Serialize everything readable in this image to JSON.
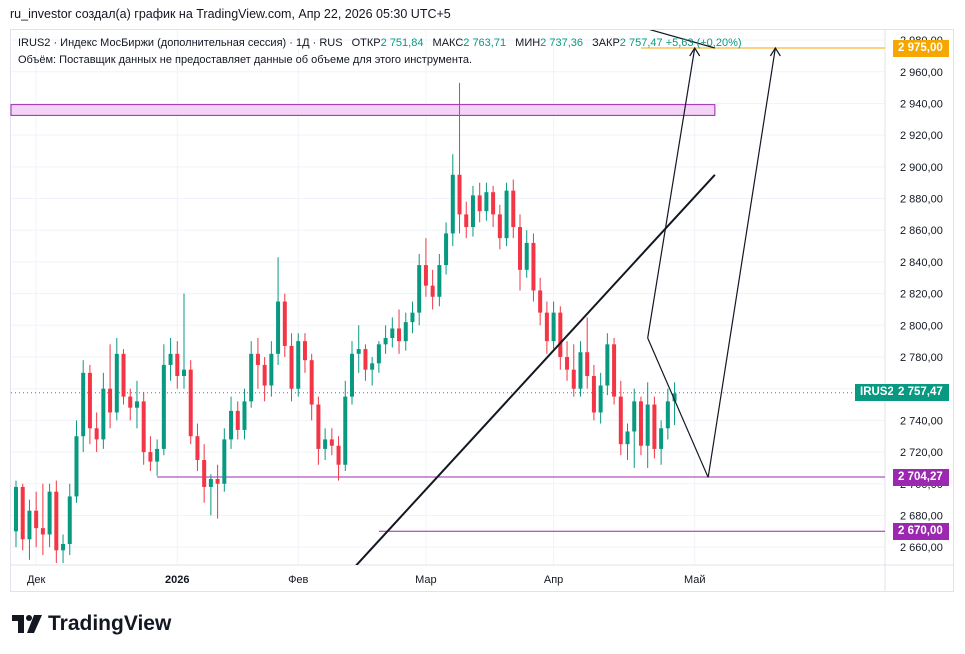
{
  "header": {
    "attribution": "ru_investor создал(а) график на TradingView.com, Апр 22, 2026 05:30 UTC+5"
  },
  "legend": {
    "symbol_line": "IRUS2 · Индекс МосБиржи (дополнительная сессия) · 1Д · RUS",
    "open_label": "ОТКР",
    "open_value": "2 751,84",
    "high_label": "МАКС",
    "high_value": "2 763,71",
    "low_label": "МИН",
    "low_value": "2 737,36",
    "close_label": "ЗАКР",
    "close_value": "2 757,47",
    "change": "+5,63 (+0,20%)",
    "volume_note": "Объём: Поставщик данных не предоставляет данные об объеме для этого инструмента."
  },
  "brand": {
    "name": "TradingView"
  },
  "colors": {
    "up": "#089981",
    "down": "#f23645",
    "purple": "#9c27b0",
    "gold": "#f7a600",
    "zone_fill": "#f3d4f7",
    "grid": "#f0f3fa",
    "axis_text": "#131722"
  },
  "chart_data": {
    "type": "candlestick",
    "title": "IRUS2 · Индекс МосБиржи (дополнительная сессия) · 1Д · RUS",
    "ylim": [
      2650,
      2985
    ],
    "y_ticks": [
      2660,
      2680,
      2700,
      2720,
      2740,
      2760,
      2780,
      2800,
      2820,
      2840,
      2860,
      2880,
      2900,
      2920,
      2940,
      2960,
      2980
    ],
    "y_tick_labels": [
      "2 660,00",
      "2 680,00",
      "2 700,00",
      "2 720,00",
      "2 740,00",
      "2 760,00",
      "2 780,00",
      "2 800,00",
      "2 820,00",
      "2 840,00",
      "2 860,00",
      "2 880,00",
      "2 900,00",
      "2 920,00",
      "2 940,00",
      "2 960,00",
      "2 980,00"
    ],
    "x_index_range": [
      -3,
      110
    ],
    "x_ticks": [
      {
        "index": 3,
        "label": "Дек"
      },
      {
        "index": 24,
        "label": "2026"
      },
      {
        "index": 42,
        "label": "Фев"
      },
      {
        "index": 61,
        "label": "Мар"
      },
      {
        "index": 80,
        "label": "Апр"
      },
      {
        "index": 101,
        "label": "Май"
      }
    ],
    "candles_ohlc": [
      [
        2670,
        2702,
        2660,
        2698
      ],
      [
        2698,
        2700,
        2658,
        2665
      ],
      [
        2665,
        2690,
        2652,
        2683
      ],
      [
        2683,
        2695,
        2660,
        2672
      ],
      [
        2672,
        2700,
        2655,
        2668
      ],
      [
        2668,
        2700,
        2660,
        2695
      ],
      [
        2695,
        2702,
        2650,
        2658
      ],
      [
        2658,
        2668,
        2650,
        2662
      ],
      [
        2662,
        2700,
        2655,
        2692
      ],
      [
        2692,
        2740,
        2688,
        2730
      ],
      [
        2730,
        2778,
        2720,
        2770
      ],
      [
        2770,
        2775,
        2725,
        2735
      ],
      [
        2735,
        2745,
        2720,
        2728
      ],
      [
        2728,
        2770,
        2722,
        2760
      ],
      [
        2760,
        2788,
        2735,
        2745
      ],
      [
        2745,
        2792,
        2740,
        2782
      ],
      [
        2782,
        2785,
        2750,
        2755
      ],
      [
        2755,
        2760,
        2740,
        2748
      ],
      [
        2748,
        2765,
        2735,
        2752
      ],
      [
        2752,
        2758,
        2712,
        2720
      ],
      [
        2720,
        2730,
        2708,
        2714
      ],
      [
        2714,
        2728,
        2705,
        2722
      ],
      [
        2722,
        2788,
        2718,
        2775
      ],
      [
        2775,
        2792,
        2765,
        2782
      ],
      [
        2782,
        2790,
        2760,
        2768
      ],
      [
        2768,
        2820,
        2760,
        2772
      ],
      [
        2772,
        2778,
        2725,
        2730
      ],
      [
        2730,
        2738,
        2708,
        2715
      ],
      [
        2715,
        2725,
        2688,
        2698
      ],
      [
        2698,
        2706,
        2680,
        2703
      ],
      [
        2703,
        2712,
        2678,
        2700
      ],
      [
        2700,
        2735,
        2695,
        2728
      ],
      [
        2728,
        2755,
        2722,
        2746
      ],
      [
        2746,
        2752,
        2728,
        2734
      ],
      [
        2734,
        2760,
        2728,
        2752
      ],
      [
        2752,
        2790,
        2748,
        2782
      ],
      [
        2782,
        2792,
        2760,
        2775
      ],
      [
        2775,
        2780,
        2752,
        2762
      ],
      [
        2762,
        2790,
        2755,
        2782
      ],
      [
        2782,
        2843,
        2775,
        2815
      ],
      [
        2815,
        2820,
        2780,
        2787
      ],
      [
        2787,
        2795,
        2752,
        2760
      ],
      [
        2760,
        2795,
        2755,
        2790
      ],
      [
        2790,
        2795,
        2770,
        2778
      ],
      [
        2778,
        2782,
        2740,
        2750
      ],
      [
        2750,
        2755,
        2712,
        2722
      ],
      [
        2722,
        2735,
        2715,
        2728
      ],
      [
        2728,
        2735,
        2718,
        2724
      ],
      [
        2724,
        2730,
        2702,
        2712
      ],
      [
        2712,
        2765,
        2708,
        2755
      ],
      [
        2755,
        2790,
        2750,
        2782
      ],
      [
        2782,
        2800,
        2770,
        2785
      ],
      [
        2785,
        2788,
        2765,
        2772
      ],
      [
        2772,
        2780,
        2762,
        2776
      ],
      [
        2776,
        2790,
        2770,
        2788
      ],
      [
        2788,
        2800,
        2782,
        2792
      ],
      [
        2792,
        2805,
        2786,
        2798
      ],
      [
        2798,
        2810,
        2782,
        2790
      ],
      [
        2790,
        2808,
        2784,
        2802
      ],
      [
        2802,
        2815,
        2795,
        2808
      ],
      [
        2808,
        2845,
        2800,
        2838
      ],
      [
        2838,
        2855,
        2818,
        2825
      ],
      [
        2825,
        2835,
        2810,
        2818
      ],
      [
        2818,
        2845,
        2812,
        2838
      ],
      [
        2838,
        2865,
        2832,
        2858
      ],
      [
        2858,
        2908,
        2850,
        2895
      ],
      [
        2895,
        2953,
        2858,
        2870
      ],
      [
        2870,
        2878,
        2855,
        2862
      ],
      [
        2862,
        2888,
        2856,
        2882
      ],
      [
        2882,
        2890,
        2865,
        2872
      ],
      [
        2872,
        2890,
        2866,
        2884
      ],
      [
        2884,
        2888,
        2862,
        2870
      ],
      [
        2870,
        2876,
        2848,
        2855
      ],
      [
        2855,
        2890,
        2850,
        2885
      ],
      [
        2885,
        2892,
        2855,
        2862
      ],
      [
        2862,
        2870,
        2822,
        2835
      ],
      [
        2835,
        2860,
        2830,
        2852
      ],
      [
        2852,
        2858,
        2815,
        2822
      ],
      [
        2822,
        2830,
        2800,
        2808
      ],
      [
        2808,
        2815,
        2782,
        2790
      ],
      [
        2790,
        2815,
        2785,
        2808
      ],
      [
        2808,
        2812,
        2772,
        2780
      ],
      [
        2780,
        2790,
        2765,
        2772
      ],
      [
        2772,
        2788,
        2755,
        2760
      ],
      [
        2760,
        2790,
        2755,
        2783
      ],
      [
        2783,
        2805,
        2760,
        2768
      ],
      [
        2768,
        2775,
        2740,
        2745
      ],
      [
        2745,
        2770,
        2738,
        2762
      ],
      [
        2762,
        2795,
        2756,
        2788
      ],
      [
        2788,
        2792,
        2750,
        2755
      ],
      [
        2755,
        2765,
        2718,
        2725
      ],
      [
        2725,
        2738,
        2715,
        2733
      ],
      [
        2733,
        2760,
        2710,
        2752
      ],
      [
        2752,
        2755,
        2718,
        2724
      ],
      [
        2724,
        2764,
        2710,
        2750
      ],
      [
        2750,
        2755,
        2716,
        2722
      ],
      [
        2722,
        2740,
        2712,
        2735
      ],
      [
        2735,
        2760,
        2728,
        2752
      ],
      [
        2752,
        2764,
        2737,
        2757
      ]
    ],
    "horizontal_levels": [
      {
        "price": 2975.0,
        "label": "2 975,00",
        "color": "gold"
      },
      {
        "price": 2704.27,
        "label": "2 704,27",
        "color": "purple"
      },
      {
        "price": 2670.0,
        "label": "2 670,00",
        "color": "purple"
      }
    ],
    "last_price": {
      "price": 2757.47,
      "symbol": "IRUS2",
      "label": "2 757,47"
    },
    "zone": {
      "price_top": 2938,
      "price_bottom": 2935,
      "from_index": -3,
      "to_index": 104
    },
    "trendlines": [
      {
        "from": [
          49,
          2641
        ],
        "to": [
          104,
          2895
        ]
      },
      {
        "from": [
          94,
          2792
        ],
        "to": [
          103,
          2704
        ]
      },
      {
        "from": [
          103,
          2704
        ],
        "to": [
          113,
          2975
        ]
      },
      {
        "from": [
          94,
          2792
        ],
        "to": [
          101,
          2975
        ]
      },
      {
        "from": [
          94,
          2987
        ],
        "to": [
          104,
          2975
        ]
      }
    ]
  }
}
